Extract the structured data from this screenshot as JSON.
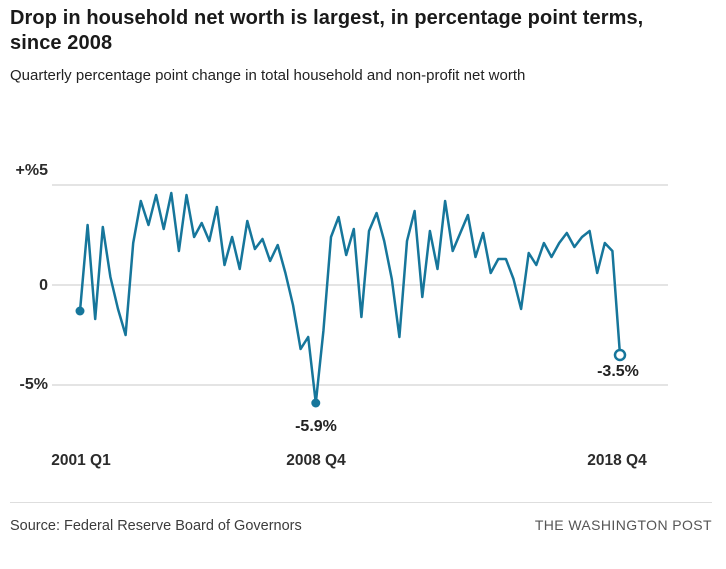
{
  "header": {
    "title": "Drop in household net worth is largest, in percentage point terms, since 2008",
    "subtitle": "Quarterly percentage point change in total household and non-profit net worth"
  },
  "chart_data": {
    "type": "line",
    "title": "Drop in household net worth is largest, in percentage point terms, since 2008",
    "subtitle": "Quarterly percentage point change in total household and non-profit net worth",
    "line_color": "#16769B",
    "grid_color": "#c9c9c9",
    "ylim": [
      -7,
      6
    ],
    "gridline_values": [
      5,
      0,
      -5
    ],
    "y_tick_labels": [
      "+%5",
      "0",
      "-5%"
    ],
    "x_tick_labels": [
      "2001 Q1",
      "2008 Q4",
      "2018 Q4"
    ],
    "x": [
      "2001 Q1",
      "2001 Q2",
      "2001 Q3",
      "2001 Q4",
      "2002 Q1",
      "2002 Q2",
      "2002 Q3",
      "2002 Q4",
      "2003 Q1",
      "2003 Q2",
      "2003 Q3",
      "2003 Q4",
      "2004 Q1",
      "2004 Q2",
      "2004 Q3",
      "2004 Q4",
      "2005 Q1",
      "2005 Q2",
      "2005 Q3",
      "2005 Q4",
      "2006 Q1",
      "2006 Q2",
      "2006 Q3",
      "2006 Q4",
      "2007 Q1",
      "2007 Q2",
      "2007 Q3",
      "2007 Q4",
      "2008 Q1",
      "2008 Q2",
      "2008 Q3",
      "2008 Q4",
      "2009 Q1",
      "2009 Q2",
      "2009 Q3",
      "2009 Q4",
      "2010 Q1",
      "2010 Q2",
      "2010 Q3",
      "2010 Q4",
      "2011 Q1",
      "2011 Q2",
      "2011 Q3",
      "2011 Q4",
      "2012 Q1",
      "2012 Q2",
      "2012 Q3",
      "2012 Q4",
      "2013 Q1",
      "2013 Q2",
      "2013 Q3",
      "2013 Q4",
      "2014 Q1",
      "2014 Q2",
      "2014 Q3",
      "2014 Q4",
      "2015 Q1",
      "2015 Q2",
      "2015 Q3",
      "2015 Q4",
      "2016 Q1",
      "2016 Q2",
      "2016 Q3",
      "2016 Q4",
      "2017 Q1",
      "2017 Q2",
      "2017 Q3",
      "2017 Q4",
      "2018 Q1",
      "2018 Q2",
      "2018 Q3",
      "2018 Q4"
    ],
    "values": [
      -1.3,
      3.0,
      -1.7,
      2.9,
      0.4,
      -1.2,
      -2.5,
      2.1,
      4.2,
      3.0,
      4.5,
      2.8,
      4.6,
      1.7,
      4.5,
      2.4,
      3.1,
      2.2,
      3.9,
      1.0,
      2.4,
      0.8,
      3.2,
      1.8,
      2.3,
      1.2,
      2.0,
      0.6,
      -1.0,
      -3.2,
      -2.6,
      -5.9,
      -2.3,
      2.4,
      3.4,
      1.5,
      2.8,
      -1.6,
      2.7,
      3.6,
      2.2,
      0.3,
      -2.6,
      2.2,
      3.7,
      -0.6,
      2.7,
      0.8,
      4.2,
      1.7,
      2.6,
      3.5,
      1.4,
      2.6,
      0.6,
      1.3,
      1.3,
      0.3,
      -1.2,
      1.6,
      1.0,
      2.1,
      1.4,
      2.1,
      2.6,
      1.9,
      2.4,
      2.7,
      0.6,
      2.1,
      1.7,
      -3.5
    ],
    "annotations": [
      {
        "label": "-5.9%",
        "x": "2008 Q4",
        "value": -5.9
      },
      {
        "label": "-3.5%",
        "x": "2018 Q4",
        "value": -3.5
      }
    ],
    "markers": [
      {
        "x": "2001 Q1",
        "style": "filled"
      },
      {
        "x": "2008 Q4",
        "style": "filled"
      },
      {
        "x": "2018 Q4",
        "style": "open"
      }
    ],
    "legend": "none",
    "grid": "horizontal-only"
  },
  "footer": {
    "source": "Source: Federal Reserve Board of Governors",
    "brand": "THE WASHINGTON POST"
  }
}
